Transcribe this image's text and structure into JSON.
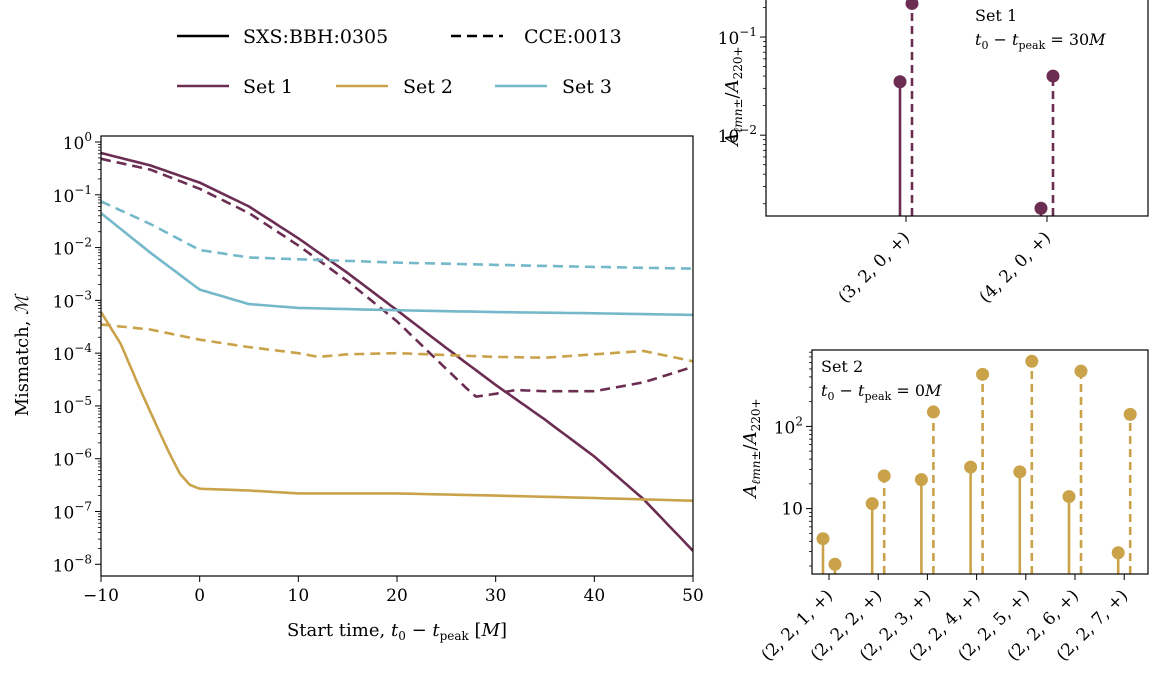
{
  "colors": {
    "set1": "#6b2d52",
    "set2": "#c9a24a",
    "set3": "#74b8c9"
  },
  "legend": {
    "style_entries": [
      {
        "label": "SXS:BBH:0305",
        "dash": "solid"
      },
      {
        "label": "CCE:0013",
        "dash": "dashed"
      }
    ],
    "color_entries": [
      {
        "label": "Set 1",
        "color_key": "set1"
      },
      {
        "label": "Set 2",
        "color_key": "set2"
      },
      {
        "label": "Set 3",
        "color_key": "set3"
      }
    ]
  },
  "chart_data": [
    {
      "type": "line",
      "xlabel": "Start time, t0 − tpeak [M]",
      "ylabel": "Mismatch, ℳ",
      "xlim": [
        -10,
        50
      ],
      "ylim": [
        6e-09,
        1.3
      ],
      "yscale": "log",
      "grid": false,
      "x_ticks": [
        "−10",
        "0",
        "10",
        "20",
        "30",
        "40",
        "50"
      ],
      "y_tick_exponents": [
        -8,
        -7,
        -6,
        -5,
        -4,
        -3,
        -2,
        -1,
        0
      ],
      "series": [
        {
          "name": "Set 1",
          "source": "SXS:BBH:0305",
          "color_key": "set1",
          "dash": "solid",
          "x": [
            -10,
            -5,
            0,
            5,
            10,
            15,
            20,
            25,
            30,
            35,
            40,
            45,
            50
          ],
          "y": [
            0.62,
            0.36,
            0.17,
            0.06,
            0.015,
            0.0033,
            0.00065,
            0.000125,
            2.5e-05,
            5.5e-06,
            1.1e-06,
            1.7e-07,
            1.8e-08
          ]
        },
        {
          "name": "Set 1",
          "source": "CCE:0013",
          "color_key": "set1",
          "dash": "dashed",
          "x": [
            -10,
            -5,
            0,
            5,
            10,
            15,
            20,
            25,
            27,
            28,
            30,
            32,
            35,
            40,
            45,
            50
          ],
          "y": [
            0.48,
            0.3,
            0.13,
            0.045,
            0.011,
            0.0023,
            0.0004,
            5e-05,
            2.2e-05,
            1.5e-05,
            1.7e-05,
            2e-05,
            1.9e-05,
            1.9e-05,
            2.8e-05,
            5.5e-05
          ]
        },
        {
          "name": "Set 2",
          "source": "SXS:BBH:0305",
          "color_key": "set2",
          "dash": "solid",
          "x": [
            -10,
            -8,
            -6,
            -4,
            -3,
            -2,
            -1,
            0,
            5,
            10,
            20,
            30,
            40,
            50
          ],
          "y": [
            0.0006,
            0.00015,
            2e-05,
            3e-06,
            1.2e-06,
            5.2e-07,
            3.2e-07,
            2.7e-07,
            2.5e-07,
            2.2e-07,
            2.2e-07,
            2e-07,
            1.8e-07,
            1.6e-07
          ]
        },
        {
          "name": "Set 2",
          "source": "CCE:0013",
          "color_key": "set2",
          "dash": "dashed",
          "x": [
            -10,
            -5,
            0,
            5,
            10,
            12,
            15,
            20,
            25,
            30,
            35,
            40,
            45,
            50
          ],
          "y": [
            0.00035,
            0.00028,
            0.00018,
            0.00013,
            0.0001,
            8.5e-05,
            9.5e-05,
            0.0001,
            9.2e-05,
            8.5e-05,
            8.2e-05,
            9.5e-05,
            0.00011,
            7e-05
          ]
        },
        {
          "name": "Set 3",
          "source": "SXS:BBH:0305",
          "color_key": "set3",
          "dash": "solid",
          "x": [
            -10,
            -5,
            0,
            5,
            10,
            20,
            30,
            40,
            50
          ],
          "y": [
            0.045,
            0.008,
            0.0016,
            0.00085,
            0.00072,
            0.00065,
            0.0006,
            0.00057,
            0.00053
          ]
        },
        {
          "name": "Set 3",
          "source": "CCE:0013",
          "color_key": "set3",
          "dash": "dashed",
          "x": [
            -10,
            -5,
            0,
            5,
            10,
            20,
            30,
            40,
            50
          ],
          "y": [
            0.075,
            0.028,
            0.009,
            0.0065,
            0.006,
            0.0052,
            0.0047,
            0.0043,
            0.004
          ]
        }
      ]
    },
    {
      "type": "stem",
      "title": "Set 1",
      "annotation": "t0 − tpeak = 30M",
      "ylabel": "Aℓmn±/A220+",
      "yscale": "log",
      "ylim": [
        0.0015,
        0.25
      ],
      "y_tick_exponents": [
        -2,
        -1
      ],
      "categories": [
        "(3, 2, 0, +)",
        "(4, 2, 0, +)"
      ],
      "color_key": "set1",
      "series": [
        {
          "source": "SXS:BBH:0305",
          "dash": "solid",
          "values": [
            0.035,
            0.0018
          ]
        },
        {
          "source": "CCE:0013",
          "dash": "dashed",
          "values": [
            0.22,
            0.04
          ]
        }
      ]
    },
    {
      "type": "stem",
      "title": "Set 2",
      "annotation": "t0 − tpeak = 0M",
      "ylabel": "Aℓmn±/A220+",
      "yscale": "log",
      "ylim": [
        1.6,
        850
      ],
      "y_ticks": [
        "10",
        "10²"
      ],
      "categories": [
        "(2, 2, 1, +)",
        "(2, 2, 2, +)",
        "(2, 2, 3, +)",
        "(2, 2, 4, +)",
        "(2, 2, 5, +)",
        "(2, 2, 6, +)",
        "(2, 2, 7, +)"
      ],
      "color_key": "set2",
      "series": [
        {
          "source": "SXS:BBH:0305",
          "dash": "solid",
          "values": [
            4.3,
            11.5,
            22.5,
            32,
            28,
            14,
            2.9
          ]
        },
        {
          "source": "CCE:0013",
          "dash": "dashed",
          "values": [
            2.1,
            25,
            150,
            430,
            620,
            470,
            140
          ]
        }
      ]
    }
  ]
}
